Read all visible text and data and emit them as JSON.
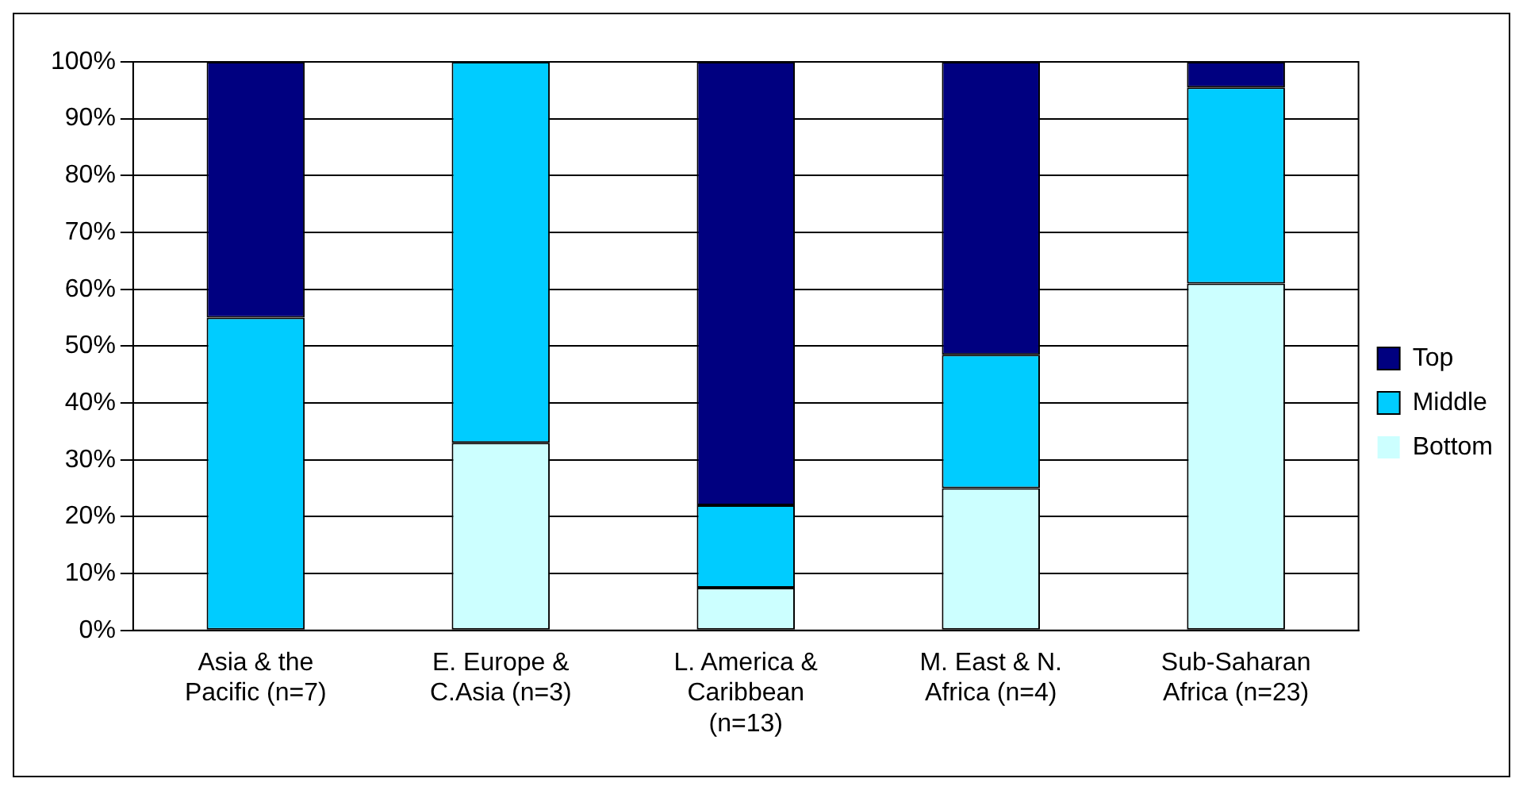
{
  "chart_data": {
    "type": "bar",
    "stacked": true,
    "categories": [
      "Asia & the Pacific (n=7)",
      "E. Europe & C.Asia (n=3)",
      "L. America & Caribbean (n=13)",
      "M. East & N. Africa (n=4)",
      "Sub-Saharan Africa (n=23)"
    ],
    "series": [
      {
        "name": "Bottom",
        "color": "#ccffff",
        "values": [
          0,
          33,
          7.5,
          25,
          61
        ]
      },
      {
        "name": "Middle",
        "color": "#00ccff",
        "values": [
          55,
          67,
          14.5,
          23.5,
          34.5
        ]
      },
      {
        "name": "Top",
        "color": "#000080",
        "values": [
          45,
          0,
          78,
          51.5,
          4.5
        ]
      }
    ],
    "ylim": [
      0,
      100
    ],
    "yticks": [
      {
        "value": 0,
        "label": "0%"
      },
      {
        "value": 10,
        "label": "10%"
      },
      {
        "value": 20,
        "label": "20%"
      },
      {
        "value": 30,
        "label": "30%"
      },
      {
        "value": 40,
        "label": "40%"
      },
      {
        "value": 50,
        "label": "50%"
      },
      {
        "value": 60,
        "label": "60%"
      },
      {
        "value": 70,
        "label": "70%"
      },
      {
        "value": 80,
        "label": "80%"
      },
      {
        "value": 90,
        "label": "90%"
      },
      {
        "value": 100,
        "label": "100%"
      }
    ],
    "grid": "y",
    "legend": "right"
  }
}
